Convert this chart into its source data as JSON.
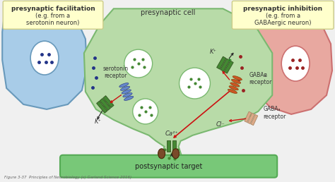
{
  "bg_color": "#f0f0f0",
  "presynaptic_cell_color": "#b8dba8",
  "presynaptic_cell_outline": "#7ab870",
  "left_neuron_color": "#a8cce8",
  "left_neuron_outline": "#6899bb",
  "right_neuron_color": "#e8a8a0",
  "right_neuron_outline": "#cc7070",
  "postsynaptic_color": "#78c878",
  "postsynaptic_outline": "#55aa55",
  "yellow_box_color": "#ffffcc",
  "yellow_box_outline": "#cccc88",
  "green_receptor_color": "#448833",
  "orange_receptor_color": "#cc5522",
  "blue_receptor_color": "#6688cc",
  "peach_receptor_color": "#ddaa88",
  "arrow_color": "#222222",
  "red_arrow_color": "#cc1111",
  "green_arrow_color": "#228822",
  "dark_green_dot": "#448833",
  "caption": "Figure 3-37  Principles of Neurobiology (c) Garland Science 2016)",
  "title_left": "presynaptic facilitation",
  "subtitle_left": "(e.g. from a\nserotonin neuron)",
  "title_right": "presynaptic inhibition",
  "subtitle_right": "(e.g. from a\nGABAergic neuron)",
  "label_center": "presynaptic cell",
  "label_postsynaptic": "postsynaptic target",
  "label_k1": "K⁺",
  "label_k2": "K⁺",
  "label_ca": "Ca²⁺",
  "label_cl": "Cl⁻",
  "label_serotonin": "serotonin\nreceptor",
  "label_gabab": "GABAᴃ\nreceptor",
  "label_gabaa": "GABAₐ\nreceptor"
}
